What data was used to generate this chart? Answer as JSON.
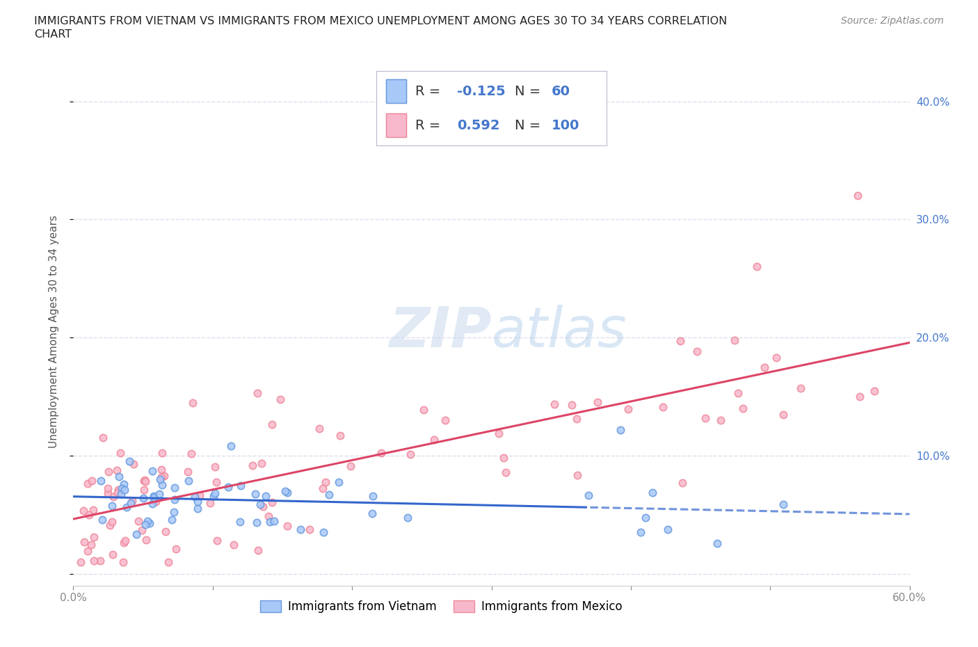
{
  "title_line1": "IMMIGRANTS FROM VIETNAM VS IMMIGRANTS FROM MEXICO UNEMPLOYMENT AMONG AGES 30 TO 34 YEARS CORRELATION",
  "title_line2": "CHART",
  "source": "Source: ZipAtlas.com",
  "ylabel": "Unemployment Among Ages 30 to 34 years",
  "xlim": [
    0.0,
    0.6
  ],
  "ylim": [
    -0.01,
    0.42
  ],
  "xticks": [
    0.0,
    0.1,
    0.2,
    0.3,
    0.4,
    0.5,
    0.6
  ],
  "xticklabels": [
    "0.0%",
    "",
    "",
    "",
    "",
    "",
    "60.0%"
  ],
  "yticks": [
    0.0,
    0.1,
    0.2,
    0.3,
    0.4
  ],
  "yticklabels": [
    "",
    "10.0%",
    "20.0%",
    "30.0%",
    "40.0%"
  ],
  "right_ytick_labels": [
    "10.0%",
    "20.0%",
    "30.0%",
    "40.0%"
  ],
  "vietnam_fill": "#a8c8f8",
  "vietnam_edge": "#6699dd",
  "mexico_fill": "#f8b8cc",
  "mexico_edge": "#ee8899",
  "vietnam_line_color": "#3366cc",
  "mexico_line_color": "#dd4466",
  "legend_color": "#4477cc",
  "watermark_color": "#ccddee",
  "background_color": "#ffffff",
  "grid_color": "#ddddee",
  "seed_v": 42,
  "seed_m": 99
}
